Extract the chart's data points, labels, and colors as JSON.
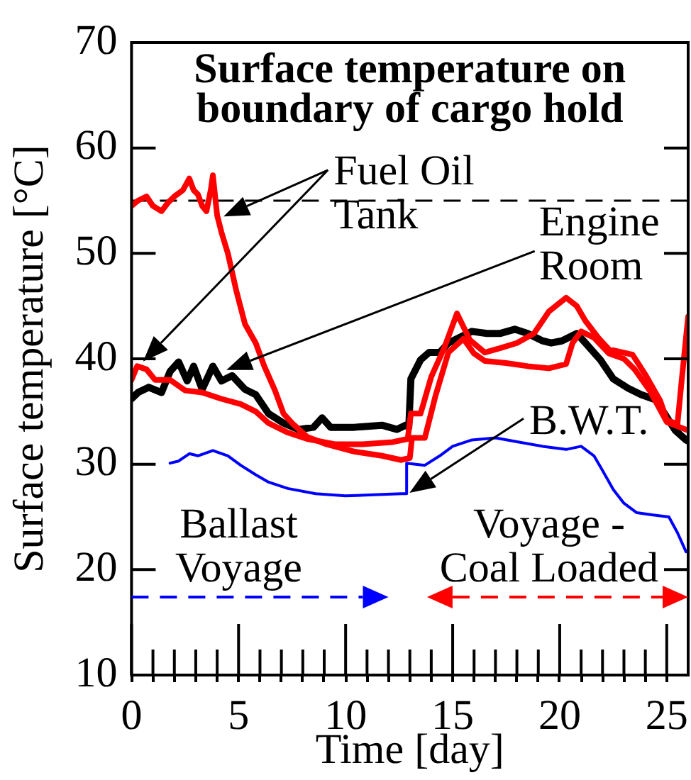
{
  "chart_data": {
    "type": "line",
    "title": "Surface temperature on boundary of cargo hold",
    "xlabel": "Time [day]",
    "ylabel": "Surface temperature [°C]",
    "xlim": [
      0,
      26
    ],
    "ylim": [
      10,
      70
    ],
    "xticks": [
      0,
      {
        "value": 1,
        "label": null
      },
      {
        "value": 2,
        "label": null
      },
      {
        "value": 3,
        "label": null
      },
      {
        "value": 4,
        "label": null
      },
      5,
      {
        "value": 6,
        "label": null
      },
      {
        "value": 7,
        "label": null
      },
      {
        "value": 8,
        "label": null
      },
      {
        "value": 9,
        "label": null
      },
      10,
      {
        "value": 11,
        "label": null
      },
      {
        "value": 12,
        "label": null
      },
      {
        "value": 13,
        "label": null
      },
      {
        "value": 14,
        "label": null
      },
      15,
      {
        "value": 16,
        "label": null
      },
      {
        "value": 17,
        "label": null
      },
      {
        "value": 18,
        "label": null
      },
      {
        "value": 19,
        "label": null
      },
      20,
      {
        "value": 21,
        "label": null
      },
      {
        "value": 22,
        "label": null
      },
      {
        "value": 23,
        "label": null
      },
      {
        "value": 24,
        "label": null
      },
      25
    ],
    "yticks": [
      10,
      20,
      30,
      40,
      50,
      60,
      70
    ],
    "series": [
      {
        "color": "#ff0000",
        "x": [
          0,
          0.3,
          0.7,
          1.0,
          1.4,
          1.7,
          2.0,
          2.4,
          2.7,
          2.9,
          3.1,
          3.3,
          3.5,
          3.7,
          3.8,
          4.0,
          4.2,
          4.5,
          4.9,
          5.3,
          5.8,
          6.2,
          6.7,
          7.1,
          7.5,
          8.2,
          9.1,
          10.4,
          11.7,
          12.6,
          13.0,
          13.1,
          13.7,
          14.2,
          14.8,
          15.5,
          16.0,
          16.5,
          17.5,
          18.5,
          19.5,
          20.3,
          20.6,
          21.0,
          21.6,
          22.3,
          23.0,
          23.5,
          24.2,
          24.6,
          25.0,
          25.5,
          26.0
        ],
        "values": [
          54.5,
          55,
          55.4,
          54.5,
          54,
          54.8,
          55.4,
          56,
          57.1,
          56,
          55.6,
          54.5,
          54,
          56,
          57.4,
          53.6,
          52,
          50,
          46.4,
          43.3,
          41.5,
          39.3,
          37,
          34.8,
          33.9,
          32.6,
          31.9,
          31.2,
          30.8,
          30.4,
          30.6,
          32.5,
          32.5,
          36.5,
          40.6,
          41.9,
          40.5,
          39.8,
          39.6,
          39.3,
          39.1,
          39.5,
          41.5,
          42.6,
          42,
          40.5,
          40,
          39,
          37,
          35.5,
          34,
          33.6,
          33.2
        ]
      },
      {
        "color": "#ff0000",
        "x": [
          0,
          0.26,
          0.7,
          1.1,
          1.8,
          2.5,
          3.3,
          4.2,
          5.1,
          5.8,
          6.4,
          7.3,
          8.2,
          9.5,
          10.8,
          12.2,
          12.9,
          13.05,
          13.5,
          14.0,
          14.6,
          15.2,
          15.8,
          16.5,
          17.2,
          18.0,
          18.8,
          19.5,
          20.3,
          20.8,
          21.2,
          21.8,
          22.3,
          23.4,
          24.0,
          24.7,
          25.0,
          25.5,
          25.7,
          25.9,
          26
        ],
        "values": [
          38,
          39.3,
          39,
          38,
          38,
          37,
          36.8,
          36.2,
          35.7,
          35,
          33.9,
          33,
          32.4,
          31.9,
          31.9,
          32.1,
          32.4,
          34.8,
          34.8,
          38.3,
          41,
          44.3,
          41.8,
          40.6,
          41,
          41.5,
          42.4,
          44.5,
          45.8,
          45,
          43.6,
          42,
          40.9,
          40.4,
          38.5,
          36,
          34.2,
          33.8,
          38,
          42,
          44
        ]
      },
      {
        "color": "#000000",
        "x": [
          0,
          0.3,
          0.8,
          1.4,
          1.8,
          2.2,
          2.6,
          2.9,
          3.3,
          3.8,
          4.2,
          4.7,
          5.3,
          5.8,
          6.4,
          7.1,
          7.8,
          8.5,
          8.9,
          9.3,
          10.4,
          11.7,
          12.4,
          12.8,
          12.95,
          13.05,
          13.5,
          13.9,
          14.4,
          14.8,
          15.2,
          15.9,
          16.6,
          17.2,
          17.9,
          18.5,
          19.2,
          19.6,
          20.1,
          20.8,
          21.2,
          21.9,
          22.5,
          23.2,
          23.8,
          24.5,
          24.9,
          25.4,
          25.9,
          26
        ],
        "values": [
          36.2,
          36.8,
          37.3,
          36.8,
          38.8,
          39.7,
          37.9,
          39.3,
          37.1,
          39.3,
          37.9,
          38.4,
          37.1,
          36.6,
          34.8,
          33.9,
          33.3,
          33.5,
          34.4,
          33.5,
          33.5,
          33.7,
          33.3,
          33.7,
          33.5,
          38.1,
          39.9,
          40.6,
          40.6,
          41.5,
          41.9,
          42.6,
          42.4,
          42.4,
          42.8,
          42.4,
          41.7,
          41.5,
          41.7,
          42.4,
          41.5,
          39.9,
          38.1,
          37.2,
          36.6,
          36.1,
          34.8,
          33.2,
          32.3,
          32.2
        ]
      },
      {
        "color": "#0000ff",
        "x": [
          1.8,
          2.2,
          2.7,
          3.1,
          3.8,
          4.5,
          5.1,
          5.8,
          6.4,
          7.3,
          8.6,
          10.0,
          11.3,
          12.6,
          12.85,
          12.85,
          13.7,
          14.4,
          15.0,
          15.9,
          17.0,
          18.1,
          19.2,
          20.3,
          21.0,
          21.6,
          22.0,
          22.5,
          23.0,
          23.6,
          24.3,
          25.1,
          25.5,
          25.9
        ],
        "values": [
          30.1,
          30.3,
          31,
          30.8,
          31.3,
          30.8,
          29.9,
          29,
          28.3,
          27.7,
          27.2,
          27,
          27.1,
          27.2,
          27.2,
          30.1,
          29.9,
          30.8,
          31.7,
          32.3,
          32.5,
          32.1,
          31.7,
          31.4,
          31.7,
          30.8,
          29.4,
          27.6,
          26.3,
          25.4,
          25.2,
          25,
          23.5,
          21.7
        ]
      }
    ],
    "ref_lines": [
      {
        "axis": "y",
        "value": 55,
        "color": "#000000",
        "line_style": "dashed"
      }
    ],
    "annotations": [
      {
        "text": "Fuel Oil Tank",
        "x": 4.3,
        "y": 53.5
      },
      "Engine Room",
      {
        "text": "B.W.T.",
        "x": 13.15,
        "y": 27.5
      },
      "Ballast Voyage",
      "Voyage - Coal Loaded"
    ]
  }
}
